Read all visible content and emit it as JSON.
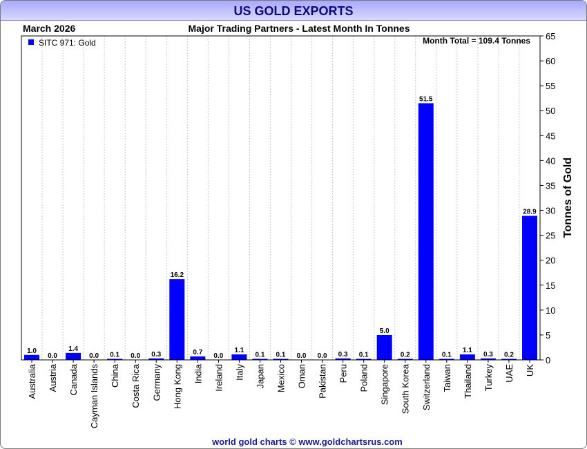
{
  "header": {
    "title": "US GOLD EXPORTS",
    "date": "March 2026",
    "subtitle": "Major Trading Partners - Latest Month In Tonnes"
  },
  "legend": {
    "label": "SITC 971: Gold",
    "color": "#0000ff"
  },
  "month_total": "Month Total = 109.4 Tonnes",
  "footer": "world gold charts © www.goldchartsrus.com",
  "chart_data": {
    "type": "bar",
    "title": "US GOLD EXPORTS",
    "subtitle": "Major Trading Partners - Latest Month In Tonnes",
    "ylabel": "Tonnes of Gold",
    "xlabel": "",
    "ylim": [
      0,
      65
    ],
    "ytick_step": 5,
    "grid": true,
    "legend_position": "top-left",
    "bar_color": "#0000ff",
    "categories": [
      "Australia",
      "Austria",
      "Canada",
      "Cayman Islands",
      "China",
      "Costa Rica",
      "Germany",
      "Hong Kong",
      "India",
      "Ireland",
      "Italy",
      "Japan",
      "Mexico",
      "Oman",
      "Pakistan",
      "Peru",
      "Poland",
      "Singapore",
      "South Korea",
      "Switzerland",
      "Taiwan",
      "Thailand",
      "Turkey",
      "UAE",
      "UK"
    ],
    "series": [
      {
        "name": "SITC 971: Gold",
        "values": [
          1.0,
          0.0,
          1.4,
          0.0,
          0.1,
          0.0,
          0.3,
          16.2,
          0.7,
          0.0,
          1.1,
          0.1,
          0.1,
          0.0,
          0.0,
          0.3,
          0.1,
          5.0,
          0.2,
          51.5,
          0.1,
          1.1,
          0.3,
          0.2,
          28.9
        ]
      }
    ]
  }
}
